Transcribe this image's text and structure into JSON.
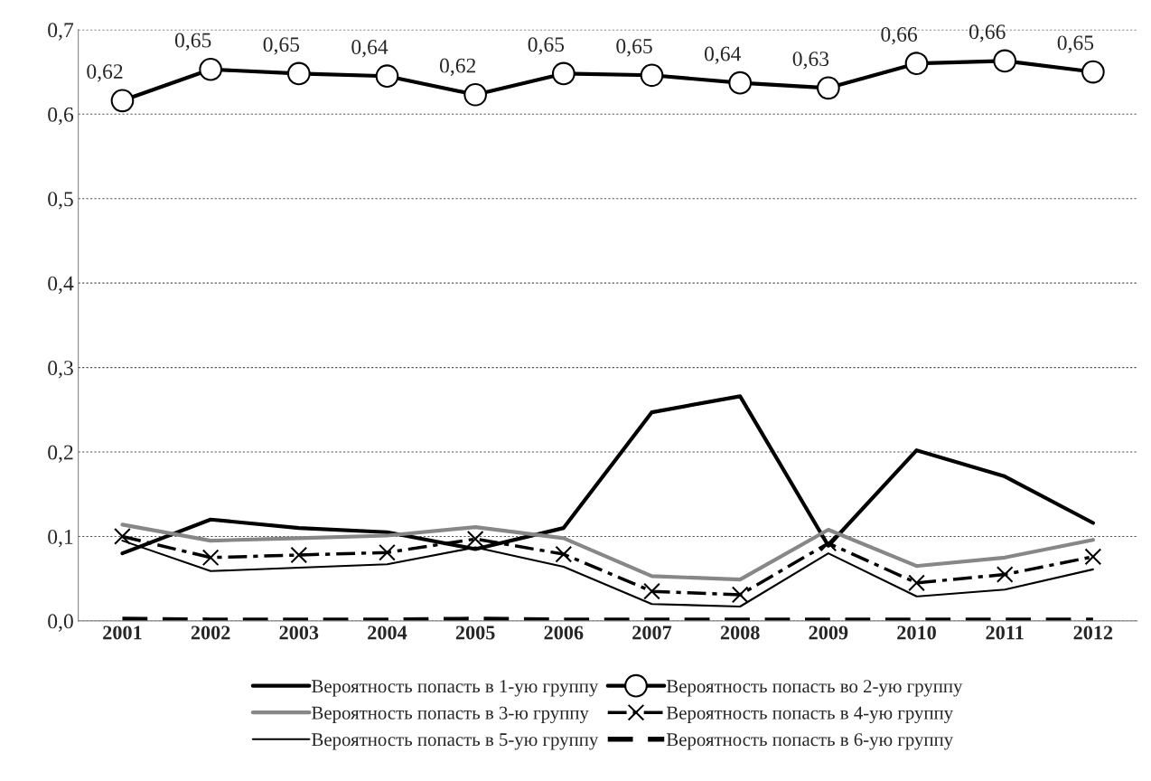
{
  "chart_data": {
    "type": "line",
    "categories": [
      "2001",
      "2002",
      "2003",
      "2004",
      "2005",
      "2006",
      "2007",
      "2008",
      "2009",
      "2010",
      "2011",
      "2012"
    ],
    "series": [
      {
        "name": "Вероятность попасть в 1-ую группу",
        "color": "#000000",
        "marker": "none",
        "line_style": "solid",
        "values": [
          0.08,
          0.12,
          0.11,
          0.105,
          0.085,
          0.11,
          0.247,
          0.266,
          0.089,
          0.202,
          0.171,
          0.116
        ]
      },
      {
        "name": "Вероятность попасть во 2-ую группу",
        "color": "#000000",
        "marker": "circle",
        "line_style": "solid",
        "values": [
          0.616,
          0.653,
          0.648,
          0.645,
          0.623,
          0.648,
          0.646,
          0.637,
          0.631,
          0.66,
          0.663,
          0.65
        ],
        "value_labels": [
          "0,62",
          "0,65",
          "0,65",
          "0,64",
          "0,62",
          "0,65",
          "0,65",
          "0,64",
          "0,63",
          "0,66",
          "0,66",
          "0,65"
        ]
      },
      {
        "name": "Вероятность попасть в 3-ю группу",
        "color": "#878787",
        "marker": "none",
        "line_style": "solid",
        "values": [
          0.114,
          0.095,
          0.098,
          0.101,
          0.111,
          0.098,
          0.053,
          0.049,
          0.108,
          0.065,
          0.075,
          0.096
        ]
      },
      {
        "name": "Вероятность попасть в 4-ую группу",
        "color": "#000000",
        "marker": "cross",
        "line_style": "dashdot",
        "values": [
          0.1,
          0.075,
          0.078,
          0.081,
          0.097,
          0.079,
          0.035,
          0.031,
          0.092,
          0.045,
          0.055,
          0.076
        ]
      },
      {
        "name": "Вероятность попасть в 5-ую группу",
        "color": "#000000",
        "marker": "none",
        "line_style": "solid",
        "values": [
          0.095,
          0.059,
          0.063,
          0.067,
          0.087,
          0.064,
          0.02,
          0.017,
          0.08,
          0.029,
          0.037,
          0.061
        ]
      },
      {
        "name": "Вероятность попасть в 6-ую группу",
        "color": "#000000",
        "marker": "none",
        "line_style": "dashed",
        "values": [
          0.002,
          0.001,
          0.001,
          0.001,
          0.002,
          0.001,
          0.001,
          0.001,
          0.001,
          0.001,
          0.001,
          0.001
        ]
      }
    ],
    "ylim": [
      0,
      0.7
    ],
    "yticks": [
      {
        "value": 0,
        "label": "0,0"
      },
      {
        "value": 0.1,
        "label": "0,1"
      },
      {
        "value": 0.2,
        "label": "0,2"
      },
      {
        "value": 0.3,
        "label": "0,3"
      },
      {
        "value": 0.4,
        "label": "0,4"
      },
      {
        "value": 0.5,
        "label": "0,5"
      },
      {
        "value": 0.6,
        "label": "0,6"
      },
      {
        "value": 0.7,
        "label": "0,7"
      }
    ],
    "grid": "y",
    "legend": "bottom"
  }
}
